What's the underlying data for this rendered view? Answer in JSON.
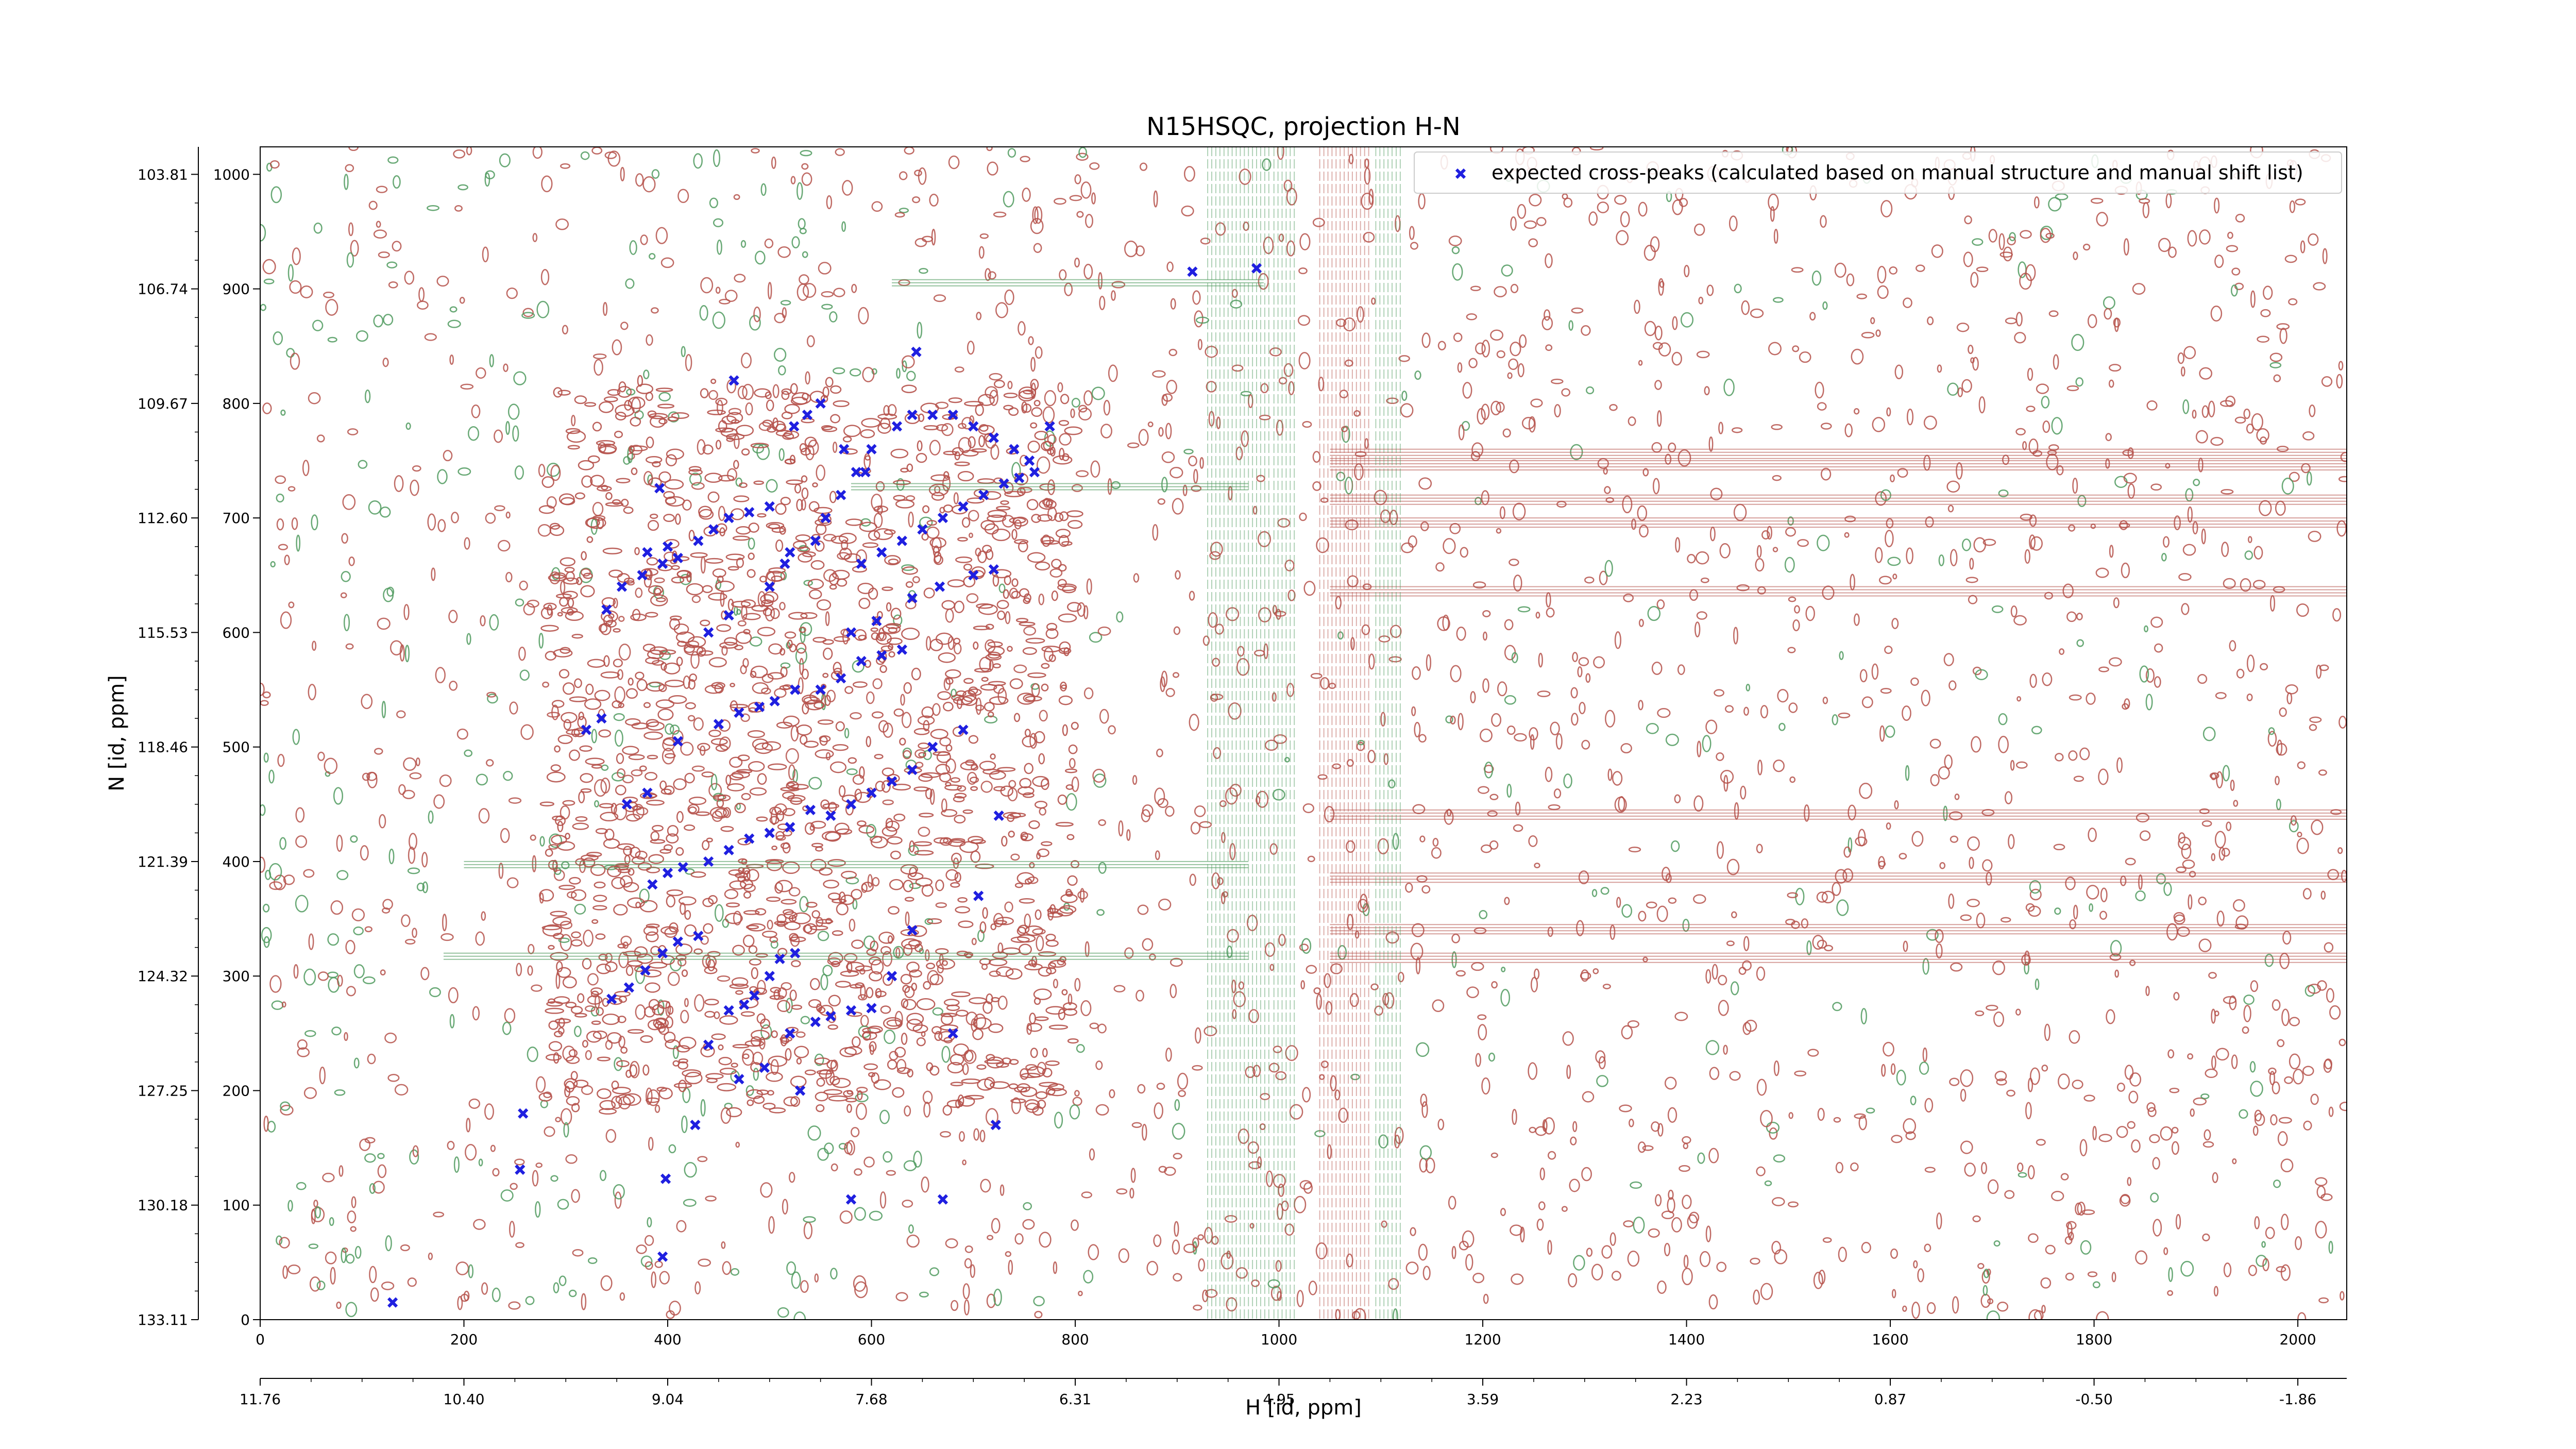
{
  "chart_data": {
    "type": "scatter",
    "title": "N15HSQC, projection H-N",
    "xlabel": "H [id, ppm]",
    "ylabel": "N [id, ppm]",
    "xlim": [
      0,
      2048
    ],
    "ylim": [
      0,
      1024
    ],
    "x_ticks": [
      0,
      200,
      400,
      600,
      800,
      1000,
      1200,
      1400,
      1600,
      1800,
      2000
    ],
    "y_ticks": [
      0,
      100,
      200,
      300,
      400,
      500,
      600,
      700,
      800,
      900,
      1000
    ],
    "ppm_x_tick_labels": [
      "11.76",
      "10.40",
      "9.04",
      "7.68",
      "6.31",
      "4.95",
      "3.59",
      "2.23",
      "0.87",
      "-0.50",
      "-1.86"
    ],
    "ppm_y_tick_labels": [
      "133.11",
      "130.18",
      "127.25",
      "124.32",
      "121.39",
      "118.46",
      "115.53",
      "112.60",
      "109.67",
      "106.74",
      "103.81"
    ],
    "grid": false,
    "legend_position": "top-right",
    "colors": {
      "positive_contour": "#b5514a",
      "negative_contour": "#4f9a5e",
      "peak_marker": "#1f1fe0"
    },
    "series": [
      {
        "name": "expected cross-peaks (calculated based on manual structure and manual shift list)",
        "marker": "x",
        "x": [
          130,
          255,
          258,
          395,
          398,
          427,
          530,
          670,
          580,
          722,
          345,
          362,
          378,
          395,
          410,
          430,
          440,
          460,
          475,
          485,
          500,
          510,
          525,
          470,
          495,
          520,
          545,
          560,
          580,
          600,
          620,
          640,
          680,
          705,
          725,
          385,
          400,
          415,
          440,
          460,
          480,
          500,
          520,
          540,
          560,
          580,
          600,
          620,
          640,
          660,
          690,
          320,
          335,
          360,
          380,
          410,
          450,
          470,
          490,
          505,
          525,
          550,
          570,
          590,
          610,
          630,
          580,
          605,
          640,
          667,
          700,
          720,
          590,
          610,
          630,
          650,
          670,
          690,
          710,
          730,
          745,
          760,
          380,
          400,
          430,
          445,
          460,
          480,
          500,
          340,
          355,
          375,
          395,
          410,
          440,
          460,
          500,
          515,
          520,
          545,
          555,
          570,
          585,
          600,
          625,
          640,
          660,
          680,
          700,
          720,
          740,
          755,
          775,
          392,
          465,
          524,
          537,
          550,
          573,
          594,
          644,
          915,
          978
        ],
        "y": [
          15,
          131,
          180,
          55,
          123,
          170,
          200,
          105,
          105,
          170,
          280,
          290,
          305,
          320,
          330,
          335,
          240,
          270,
          275,
          283,
          300,
          315,
          320,
          210,
          220,
          250,
          260,
          265,
          270,
          272,
          300,
          340,
          250,
          370,
          440,
          380,
          390,
          395,
          400,
          410,
          420,
          425,
          430,
          445,
          440,
          450,
          460,
          470,
          480,
          500,
          515,
          515,
          525,
          450,
          460,
          505,
          520,
          530,
          535,
          540,
          550,
          550,
          560,
          575,
          580,
          585,
          600,
          610,
          630,
          640,
          650,
          655,
          660,
          670,
          680,
          690,
          700,
          710,
          720,
          730,
          735,
          740,
          670,
          675,
          680,
          690,
          700,
          705,
          710,
          620,
          640,
          650,
          660,
          665,
          600,
          615,
          640,
          660,
          670,
          680,
          700,
          720,
          740,
          760,
          780,
          790,
          790,
          790,
          780,
          770,
          760,
          750,
          780,
          726,
          820,
          780,
          790,
          800,
          760,
          740,
          845,
          915,
          918
        ]
      }
    ]
  }
}
